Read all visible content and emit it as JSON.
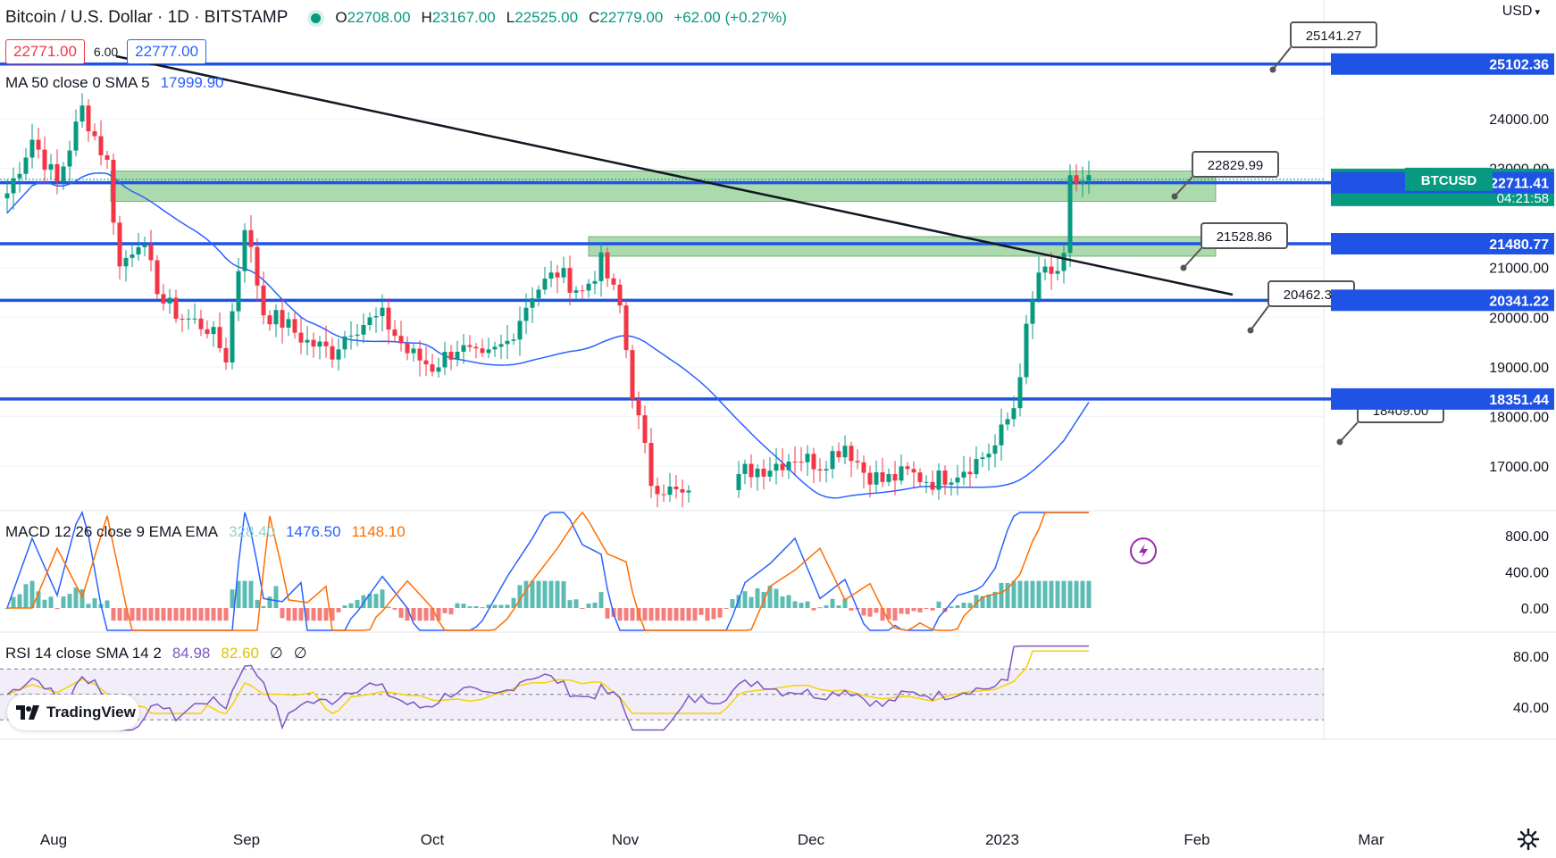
{
  "header": {
    "symbol_title": "Bitcoin / U.S. Dollar · 1D · BITSTAMP",
    "ohlc": [
      {
        "k": "O",
        "v": "22708.00"
      },
      {
        "k": "H",
        "v": "23167.00"
      },
      {
        "k": "L",
        "v": "22525.00"
      },
      {
        "k": "C",
        "v": "22779.00"
      },
      {
        "k": "",
        "v": "+62.00 (+0.27%)"
      }
    ],
    "currency": "USD"
  },
  "trade": {
    "sell": "22771.00",
    "spread": "6.00",
    "buy": "22777.00"
  },
  "ma_label": {
    "name": "MA 50 close 0 SMA 5",
    "value": "17999.90",
    "color": "#2962ff"
  },
  "macd_label": {
    "name": "MACD 12 26 close 9 EMA EMA",
    "values": [
      {
        "v": "328.40",
        "color": "#8fd3c9"
      },
      {
        "v": "1476.50",
        "color": "#2962ff"
      },
      {
        "v": "1148.10",
        "color": "#ff6d00"
      }
    ]
  },
  "rsi_label": {
    "name": "RSI 14 close SMA 14 2",
    "values": [
      {
        "v": "84.98",
        "color": "#7e57c2"
      },
      {
        "v": "82.60",
        "color": "#e0c300"
      },
      {
        "v": "∅",
        "color": "#131722"
      },
      {
        "v": "∅",
        "color": "#131722"
      }
    ]
  },
  "branding": {
    "logo": "TradingView"
  },
  "colors": {
    "up": "#089981",
    "down": "#f23645",
    "level": "#1e53e5",
    "zone": "#66bb6a",
    "ma": "#2962ff",
    "macd": "#2962ff",
    "signal": "#ff6d00",
    "rsi": "#7e57c2",
    "rsi_ma": "#f5d200"
  },
  "chart_data": {
    "type": "candlestick",
    "x_labels": [
      "Aug",
      "Sep",
      "Oct",
      "Nov",
      "Dec",
      "2023",
      "Feb",
      "Mar"
    ],
    "price_ticks": [
      "24000.00",
      "23000.00",
      "21000.00",
      "20000.00",
      "19000.00",
      "18000.00",
      "17000.00"
    ],
    "price_badges": [
      {
        "text": "25102.36",
        "price": 25102.36,
        "kind": "level"
      },
      {
        "text": "22779.00",
        "sub": "04:21:58",
        "price": 22779,
        "kind": "last"
      },
      {
        "text": "22711.41",
        "price": 22711.41,
        "kind": "level"
      },
      {
        "text": "21480.77",
        "price": 21480.77,
        "kind": "level"
      },
      {
        "text": "20341.22",
        "price": 20341.22,
        "kind": "level"
      },
      {
        "text": "18351.44",
        "price": 18351.44,
        "kind": "level"
      }
    ],
    "symbol_tag": "BTCUSD",
    "levels": [
      25102.36,
      22711.41,
      21480.77,
      20341.22,
      18351.44
    ],
    "callouts": [
      "25141.27",
      "22829.99",
      "21528.86",
      "20462.35",
      "18409.00"
    ],
    "macd_ticks": [
      "800.00",
      "400.00",
      "0.00"
    ],
    "rsi_ticks": [
      "80.00",
      "40.00"
    ],
    "close_anchors": [
      [
        0,
        22500
      ],
      [
        4,
        23600
      ],
      [
        8,
        22700
      ],
      [
        12,
        24200
      ],
      [
        16,
        23100
      ],
      [
        18,
        21000
      ],
      [
        21,
        21600
      ],
      [
        25,
        20300
      ],
      [
        28,
        20000
      ],
      [
        32,
        19800
      ],
      [
        35,
        19200
      ],
      [
        38,
        21900
      ],
      [
        41,
        20100
      ],
      [
        44,
        19900
      ],
      [
        48,
        19500
      ],
      [
        52,
        19300
      ],
      [
        55,
        19800
      ],
      [
        60,
        20000
      ],
      [
        64,
        19300
      ],
      [
        68,
        19000
      ],
      [
        72,
        19400
      ],
      [
        76,
        19100
      ],
      [
        80,
        19500
      ],
      [
        84,
        20500
      ],
      [
        88,
        20900
      ],
      [
        92,
        20500
      ],
      [
        95,
        21100
      ],
      [
        98,
        20200
      ],
      [
        100,
        18500
      ],
      [
        103,
        16700
      ],
      [
        106,
        16500
      ],
      [
        110,
        16300
      ],
      [
        114,
        16100
      ],
      [
        118,
        16900
      ],
      [
        122,
        17000
      ],
      [
        126,
        17200
      ],
      [
        130,
        17050
      ],
      [
        134,
        17450
      ],
      [
        137,
        16900
      ],
      [
        140,
        16700
      ],
      [
        144,
        16850
      ],
      [
        148,
        16700
      ],
      [
        152,
        16900
      ],
      [
        155,
        17100
      ],
      [
        158,
        17400
      ],
      [
        161,
        18200
      ],
      [
        163,
        19700
      ],
      [
        165,
        20900
      ],
      [
        167,
        20800
      ],
      [
        169,
        21100
      ],
      [
        170,
        22700
      ],
      [
        173,
        22779
      ]
    ]
  }
}
